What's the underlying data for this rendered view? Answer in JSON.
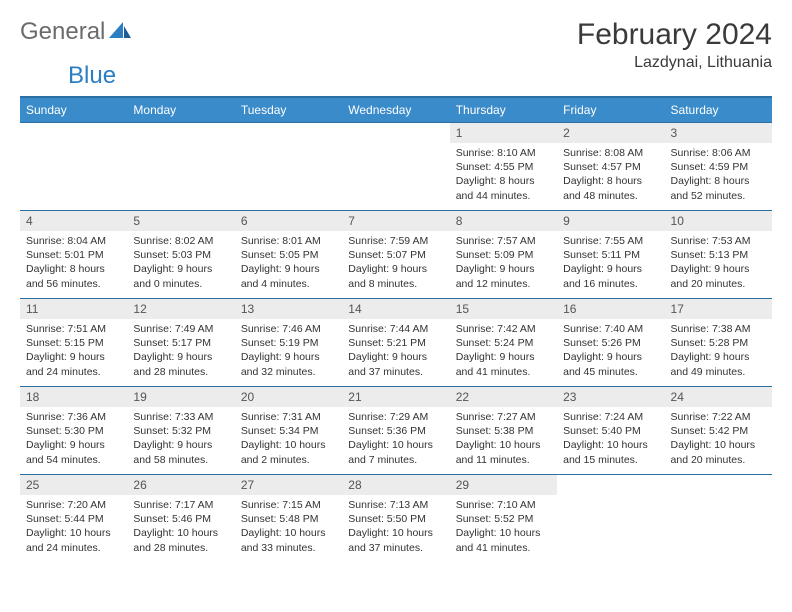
{
  "brand": {
    "part1": "General",
    "part2": "Blue"
  },
  "title": "February 2024",
  "location": "Lazdynai, Lithuania",
  "colors": {
    "header_bg": "#3a8bc9",
    "header_border": "#2b6fa3",
    "date_bar_bg": "#ececec",
    "text": "#333333",
    "brand_gray": "#6b6b6b",
    "brand_blue": "#2b7ec2"
  },
  "dayNames": [
    "Sunday",
    "Monday",
    "Tuesday",
    "Wednesday",
    "Thursday",
    "Friday",
    "Saturday"
  ],
  "weeks": [
    [
      {
        "empty": true
      },
      {
        "empty": true
      },
      {
        "empty": true
      },
      {
        "empty": true
      },
      {
        "date": "1",
        "sunrise": "Sunrise: 8:10 AM",
        "sunset": "Sunset: 4:55 PM",
        "daylight": "Daylight: 8 hours and 44 minutes."
      },
      {
        "date": "2",
        "sunrise": "Sunrise: 8:08 AM",
        "sunset": "Sunset: 4:57 PM",
        "daylight": "Daylight: 8 hours and 48 minutes."
      },
      {
        "date": "3",
        "sunrise": "Sunrise: 8:06 AM",
        "sunset": "Sunset: 4:59 PM",
        "daylight": "Daylight: 8 hours and 52 minutes."
      }
    ],
    [
      {
        "date": "4",
        "sunrise": "Sunrise: 8:04 AM",
        "sunset": "Sunset: 5:01 PM",
        "daylight": "Daylight: 8 hours and 56 minutes."
      },
      {
        "date": "5",
        "sunrise": "Sunrise: 8:02 AM",
        "sunset": "Sunset: 5:03 PM",
        "daylight": "Daylight: 9 hours and 0 minutes."
      },
      {
        "date": "6",
        "sunrise": "Sunrise: 8:01 AM",
        "sunset": "Sunset: 5:05 PM",
        "daylight": "Daylight: 9 hours and 4 minutes."
      },
      {
        "date": "7",
        "sunrise": "Sunrise: 7:59 AM",
        "sunset": "Sunset: 5:07 PM",
        "daylight": "Daylight: 9 hours and 8 minutes."
      },
      {
        "date": "8",
        "sunrise": "Sunrise: 7:57 AM",
        "sunset": "Sunset: 5:09 PM",
        "daylight": "Daylight: 9 hours and 12 minutes."
      },
      {
        "date": "9",
        "sunrise": "Sunrise: 7:55 AM",
        "sunset": "Sunset: 5:11 PM",
        "daylight": "Daylight: 9 hours and 16 minutes."
      },
      {
        "date": "10",
        "sunrise": "Sunrise: 7:53 AM",
        "sunset": "Sunset: 5:13 PM",
        "daylight": "Daylight: 9 hours and 20 minutes."
      }
    ],
    [
      {
        "date": "11",
        "sunrise": "Sunrise: 7:51 AM",
        "sunset": "Sunset: 5:15 PM",
        "daylight": "Daylight: 9 hours and 24 minutes."
      },
      {
        "date": "12",
        "sunrise": "Sunrise: 7:49 AM",
        "sunset": "Sunset: 5:17 PM",
        "daylight": "Daylight: 9 hours and 28 minutes."
      },
      {
        "date": "13",
        "sunrise": "Sunrise: 7:46 AM",
        "sunset": "Sunset: 5:19 PM",
        "daylight": "Daylight: 9 hours and 32 minutes."
      },
      {
        "date": "14",
        "sunrise": "Sunrise: 7:44 AM",
        "sunset": "Sunset: 5:21 PM",
        "daylight": "Daylight: 9 hours and 37 minutes."
      },
      {
        "date": "15",
        "sunrise": "Sunrise: 7:42 AM",
        "sunset": "Sunset: 5:24 PM",
        "daylight": "Daylight: 9 hours and 41 minutes."
      },
      {
        "date": "16",
        "sunrise": "Sunrise: 7:40 AM",
        "sunset": "Sunset: 5:26 PM",
        "daylight": "Daylight: 9 hours and 45 minutes."
      },
      {
        "date": "17",
        "sunrise": "Sunrise: 7:38 AM",
        "sunset": "Sunset: 5:28 PM",
        "daylight": "Daylight: 9 hours and 49 minutes."
      }
    ],
    [
      {
        "date": "18",
        "sunrise": "Sunrise: 7:36 AM",
        "sunset": "Sunset: 5:30 PM",
        "daylight": "Daylight: 9 hours and 54 minutes."
      },
      {
        "date": "19",
        "sunrise": "Sunrise: 7:33 AM",
        "sunset": "Sunset: 5:32 PM",
        "daylight": "Daylight: 9 hours and 58 minutes."
      },
      {
        "date": "20",
        "sunrise": "Sunrise: 7:31 AM",
        "sunset": "Sunset: 5:34 PM",
        "daylight": "Daylight: 10 hours and 2 minutes."
      },
      {
        "date": "21",
        "sunrise": "Sunrise: 7:29 AM",
        "sunset": "Sunset: 5:36 PM",
        "daylight": "Daylight: 10 hours and 7 minutes."
      },
      {
        "date": "22",
        "sunrise": "Sunrise: 7:27 AM",
        "sunset": "Sunset: 5:38 PM",
        "daylight": "Daylight: 10 hours and 11 minutes."
      },
      {
        "date": "23",
        "sunrise": "Sunrise: 7:24 AM",
        "sunset": "Sunset: 5:40 PM",
        "daylight": "Daylight: 10 hours and 15 minutes."
      },
      {
        "date": "24",
        "sunrise": "Sunrise: 7:22 AM",
        "sunset": "Sunset: 5:42 PM",
        "daylight": "Daylight: 10 hours and 20 minutes."
      }
    ],
    [
      {
        "date": "25",
        "sunrise": "Sunrise: 7:20 AM",
        "sunset": "Sunset: 5:44 PM",
        "daylight": "Daylight: 10 hours and 24 minutes."
      },
      {
        "date": "26",
        "sunrise": "Sunrise: 7:17 AM",
        "sunset": "Sunset: 5:46 PM",
        "daylight": "Daylight: 10 hours and 28 minutes."
      },
      {
        "date": "27",
        "sunrise": "Sunrise: 7:15 AM",
        "sunset": "Sunset: 5:48 PM",
        "daylight": "Daylight: 10 hours and 33 minutes."
      },
      {
        "date": "28",
        "sunrise": "Sunrise: 7:13 AM",
        "sunset": "Sunset: 5:50 PM",
        "daylight": "Daylight: 10 hours and 37 minutes."
      },
      {
        "date": "29",
        "sunrise": "Sunrise: 7:10 AM",
        "sunset": "Sunset: 5:52 PM",
        "daylight": "Daylight: 10 hours and 41 minutes."
      },
      {
        "empty": true
      },
      {
        "empty": true
      }
    ]
  ]
}
